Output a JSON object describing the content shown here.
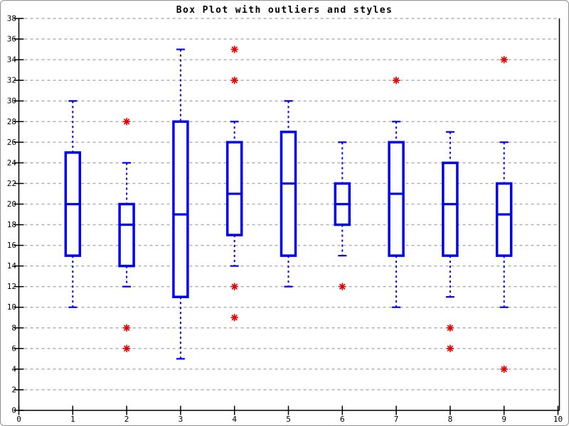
{
  "title": "Box Plot with outliers and styles",
  "colors": {
    "box": "#0000ee",
    "outlier": "#e60000",
    "grid": "#b0b0b0",
    "axis": "#000000",
    "background": "#ffffff",
    "page_border": "#909090"
  },
  "chart_data": {
    "type": "boxplot",
    "title": "Box Plot with outliers and styles",
    "xlabel": "",
    "ylabel": "",
    "xlim": [
      0,
      10
    ],
    "ylim": [
      0,
      38
    ],
    "x_ticks": [
      0,
      1,
      2,
      3,
      4,
      5,
      6,
      7,
      8,
      9,
      10
    ],
    "y_ticks": [
      0,
      2,
      4,
      6,
      8,
      10,
      12,
      14,
      16,
      18,
      20,
      22,
      24,
      26,
      28,
      30,
      32,
      34,
      36,
      38
    ],
    "grid": "horizontal-dashed",
    "legend": "none",
    "boxes": [
      {
        "x": 1,
        "low": 10,
        "q1": 15,
        "median": 20,
        "q3": 25,
        "high": 30,
        "outliers": []
      },
      {
        "x": 2,
        "low": 12,
        "q1": 14,
        "median": 18,
        "q3": 20,
        "high": 24,
        "outliers": [
          28,
          8,
          6
        ]
      },
      {
        "x": 3,
        "low": 5,
        "q1": 11,
        "median": 19,
        "q3": 28,
        "high": 35,
        "outliers": []
      },
      {
        "x": 4,
        "low": 14,
        "q1": 17,
        "median": 21,
        "q3": 26,
        "high": 28,
        "outliers": [
          35,
          32,
          12,
          9
        ]
      },
      {
        "x": 5,
        "low": 12,
        "q1": 15,
        "median": 22,
        "q3": 27,
        "high": 30,
        "outliers": []
      },
      {
        "x": 6,
        "low": 15,
        "q1": 18,
        "median": 20,
        "q3": 22,
        "high": 26,
        "outliers": [
          12
        ]
      },
      {
        "x": 7,
        "low": 10,
        "q1": 15,
        "median": 21,
        "q3": 26,
        "high": 28,
        "outliers": [
          32
        ]
      },
      {
        "x": 8,
        "low": 11,
        "q1": 15,
        "median": 20,
        "q3": 24,
        "high": 27,
        "outliers": [
          8,
          6
        ]
      },
      {
        "x": 9,
        "low": 10,
        "q1": 15,
        "median": 19,
        "q3": 22,
        "high": 26,
        "outliers": [
          34,
          4
        ]
      }
    ]
  }
}
